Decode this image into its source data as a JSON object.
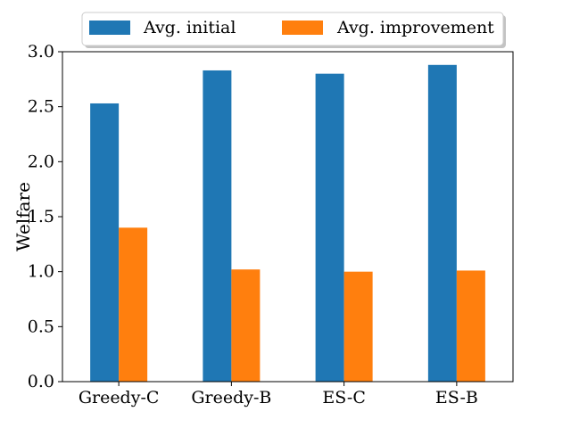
{
  "chart_data": {
    "type": "bar",
    "categories": [
      "Greedy-C",
      "Greedy-B",
      "ES-C",
      "ES-B"
    ],
    "series": [
      {
        "name": "Avg. initial",
        "values": [
          2.53,
          2.83,
          2.8,
          2.88
        ],
        "color": "#1f77b4"
      },
      {
        "name": "Avg. improvement",
        "values": [
          1.4,
          1.02,
          1.0,
          1.01
        ],
        "color": "#ff7f0e"
      }
    ],
    "xlabel": "",
    "ylabel": "Welfare",
    "ylim": [
      0,
      3.0
    ],
    "yticks": [
      "0.0",
      "0.5",
      "1.0",
      "1.5",
      "2.0",
      "2.5",
      "3.0"
    ],
    "grid": false,
    "legend_position": "top-center"
  }
}
